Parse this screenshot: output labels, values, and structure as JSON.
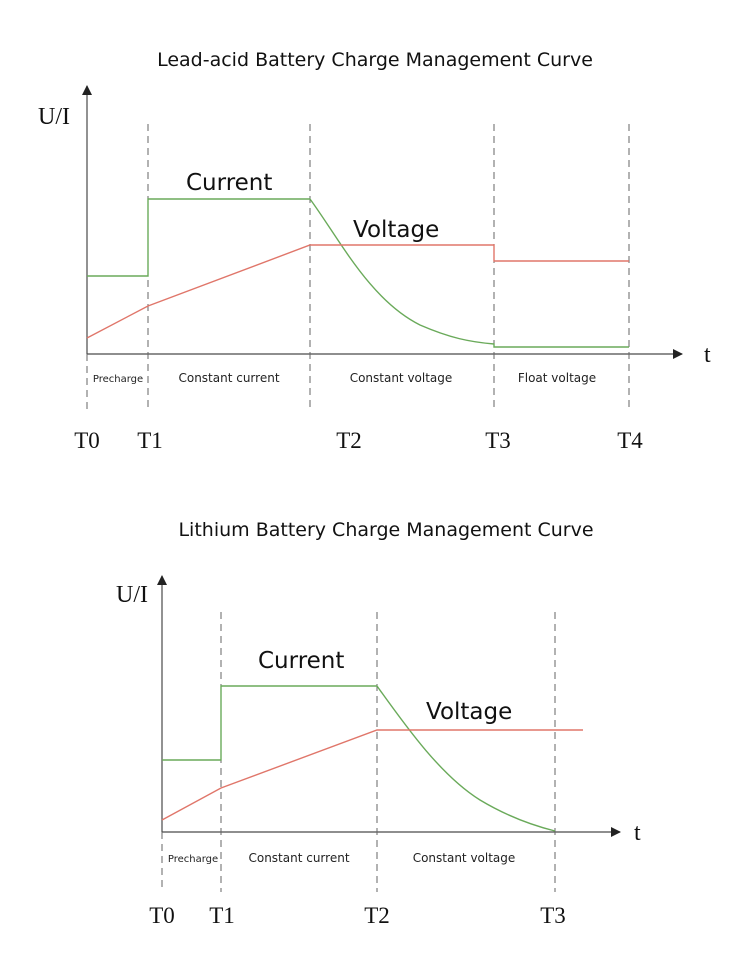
{
  "diagrams": [
    {
      "title": "Lead-acid Battery Charge Management Curve",
      "y_axis_label": "U/I",
      "x_axis_label": "t",
      "time_markers": [
        "T0",
        "T1",
        "T2",
        "T3",
        "T4"
      ],
      "phases": [
        "Precharge",
        "Constant current",
        "Constant voltage",
        "Float voltage"
      ],
      "series": [
        {
          "name": "Current",
          "color": "#6aaa5a"
        },
        {
          "name": "Voltage",
          "color": "#e0766a"
        }
      ]
    },
    {
      "title": "Lithium Battery Charge Management Curve",
      "y_axis_label": "U/I",
      "x_axis_label": "t",
      "time_markers": [
        "T0",
        "T1",
        "T2",
        "T3"
      ],
      "phases": [
        "Precharge",
        "Constant current",
        "Constant voltage"
      ],
      "series": [
        {
          "name": "Current",
          "color": "#6aaa5a"
        },
        {
          "name": "Voltage",
          "color": "#e0766a"
        }
      ]
    }
  ]
}
